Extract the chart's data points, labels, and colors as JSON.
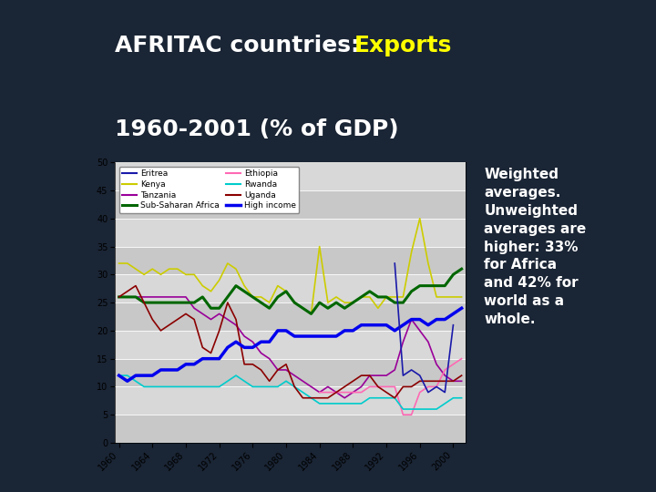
{
  "title_part1": "AFRITAC countries: ",
  "title_part2": "Exports",
  "title_line2": "1960-2001 (% of GDP)",
  "title_color1": "#ffffff",
  "title_color2": "#ffff00",
  "title_fontsize": 18,
  "background_color": "#1a2535",
  "annotation": "Weighted\naverages.\nUnweighted\naverages are\nhigher: 33%\nfor Africa\nand 42% for\nworld as a\nwhole.",
  "annotation_color": "#ffffff",
  "annotation_fontsize": 11,
  "years": [
    1960,
    1961,
    1962,
    1963,
    1964,
    1965,
    1966,
    1967,
    1968,
    1969,
    1970,
    1971,
    1972,
    1973,
    1974,
    1975,
    1976,
    1977,
    1978,
    1979,
    1980,
    1981,
    1982,
    1983,
    1984,
    1985,
    1986,
    1987,
    1988,
    1989,
    1990,
    1991,
    1992,
    1993,
    1994,
    1995,
    1996,
    1997,
    1998,
    1999,
    2000,
    2001
  ],
  "series": {
    "Eritrea": {
      "color": "#1a1aaa",
      "linewidth": 1.2,
      "values": [
        null,
        null,
        null,
        null,
        null,
        null,
        null,
        null,
        null,
        null,
        null,
        null,
        null,
        null,
        null,
        null,
        null,
        null,
        null,
        null,
        null,
        null,
        null,
        null,
        null,
        null,
        null,
        null,
        null,
        null,
        null,
        null,
        null,
        32,
        12,
        13,
        12,
        9,
        10,
        9,
        21,
        null
      ]
    },
    "Kenya": {
      "color": "#cccc00",
      "linewidth": 1.2,
      "values": [
        32,
        32,
        31,
        30,
        31,
        30,
        31,
        31,
        30,
        30,
        28,
        27,
        29,
        32,
        31,
        28,
        26,
        26,
        25,
        28,
        27,
        25,
        24,
        23,
        35,
        25,
        26,
        25,
        25,
        26,
        26,
        24,
        26,
        26,
        26,
        34,
        40,
        32,
        26,
        26,
        26,
        26
      ]
    },
    "Tanzania": {
      "color": "#990099",
      "linewidth": 1.2,
      "values": [
        26,
        26,
        26,
        26,
        26,
        26,
        26,
        26,
        26,
        24,
        23,
        22,
        23,
        22,
        21,
        19,
        18,
        16,
        15,
        13,
        13,
        12,
        11,
        10,
        9,
        10,
        9,
        8,
        9,
        10,
        12,
        12,
        12,
        13,
        18,
        22,
        20,
        18,
        14,
        12,
        11,
        11
      ]
    },
    "Sub-Saharan Africa": {
      "color": "#006600",
      "linewidth": 2.2,
      "values": [
        26,
        26,
        26,
        25,
        25,
        25,
        25,
        25,
        25,
        25,
        26,
        24,
        24,
        26,
        28,
        27,
        26,
        25,
        24,
        26,
        27,
        25,
        24,
        23,
        25,
        24,
        25,
        24,
        25,
        26,
        27,
        26,
        26,
        25,
        25,
        27,
        28,
        28,
        28,
        28,
        30,
        31
      ]
    },
    "Ethiopia": {
      "color": "#ff69b4",
      "linewidth": 1.2,
      "values": [
        null,
        null,
        null,
        null,
        null,
        null,
        null,
        null,
        null,
        null,
        null,
        null,
        null,
        null,
        null,
        null,
        null,
        null,
        null,
        null,
        null,
        null,
        null,
        null,
        9,
        9,
        9,
        9,
        9,
        9,
        10,
        10,
        10,
        10,
        5,
        5,
        9,
        10,
        10,
        13,
        14,
        15
      ]
    },
    "Rwanda": {
      "color": "#00cccc",
      "linewidth": 1.2,
      "values": [
        12,
        12,
        11,
        10,
        10,
        10,
        10,
        10,
        10,
        10,
        10,
        10,
        10,
        11,
        12,
        11,
        10,
        10,
        10,
        10,
        11,
        10,
        9,
        8,
        7,
        7,
        7,
        7,
        7,
        7,
        8,
        8,
        8,
        8,
        6,
        6,
        6,
        6,
        6,
        7,
        8,
        8
      ]
    },
    "Uganda": {
      "color": "#8b0000",
      "linewidth": 1.2,
      "values": [
        26,
        27,
        28,
        25,
        22,
        20,
        21,
        22,
        23,
        22,
        17,
        16,
        20,
        25,
        22,
        14,
        14,
        13,
        11,
        13,
        14,
        10,
        8,
        8,
        8,
        8,
        9,
        10,
        11,
        12,
        12,
        10,
        9,
        8,
        10,
        10,
        11,
        11,
        11,
        11,
        11,
        12
      ]
    },
    "High income": {
      "color": "#0000ee",
      "linewidth": 2.5,
      "values": [
        12,
        11,
        12,
        12,
        12,
        13,
        13,
        13,
        14,
        14,
        15,
        15,
        15,
        17,
        18,
        17,
        17,
        18,
        18,
        20,
        20,
        19,
        19,
        19,
        19,
        19,
        19,
        20,
        20,
        21,
        21,
        21,
        21,
        20,
        21,
        22,
        22,
        21,
        22,
        22,
        23,
        24
      ]
    }
  },
  "ylim": [
    0,
    50
  ],
  "yticks": [
    0,
    5,
    10,
    15,
    20,
    25,
    30,
    35,
    40,
    45,
    50
  ],
  "xticks": [
    1960,
    1964,
    1968,
    1972,
    1976,
    1980,
    1984,
    1988,
    1992,
    1996,
    2000
  ],
  "chart_bg_dark": "#c8c8c8",
  "chart_bg_light": "#d8d8d8",
  "red_stripe_color": "#cc0000"
}
